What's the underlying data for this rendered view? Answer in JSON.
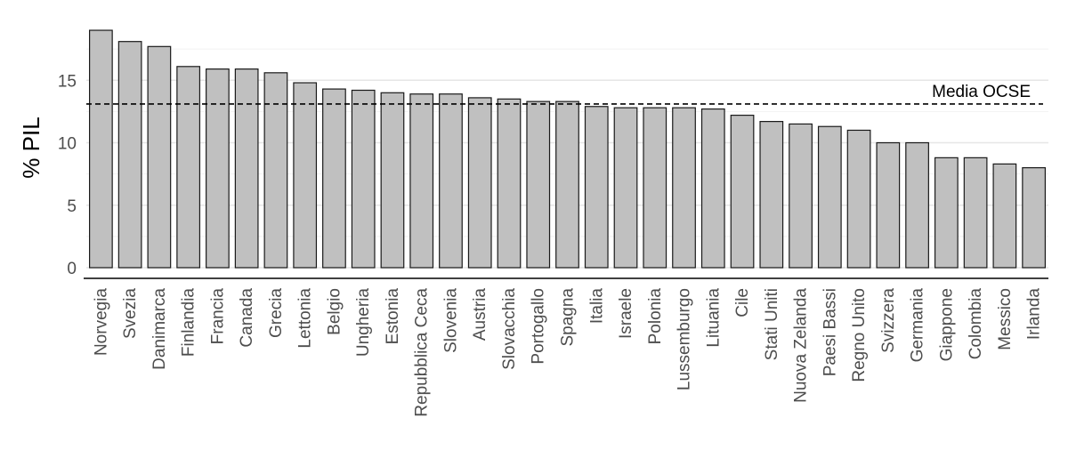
{
  "chart_data": {
    "type": "bar",
    "title": "",
    "xlabel": "",
    "ylabel": "% PIL",
    "ylim": [
      0,
      19
    ],
    "yticks": [
      0,
      5,
      10,
      15
    ],
    "grid": true,
    "bar_color": "#c0c0c0",
    "bar_edge_color": "#1a1a1a",
    "categories": [
      "Norvegia",
      "Svezia",
      "Danimarca",
      "Finlandia",
      "Francia",
      "Canada",
      "Grecia",
      "Lettonia",
      "Belgio",
      "Ungheria",
      "Estonia",
      "Repubblica Ceca",
      "Slovenia",
      "Austria",
      "Slovacchia",
      "Portogallo",
      "Spagna",
      "Italia",
      "Israele",
      "Polonia",
      "Lussemburgo",
      "Lituania",
      "Cile",
      "Stati Uniti",
      "Nuova Zelanda",
      "Paesi Bassi",
      "Regno Unito",
      "Svizzera",
      "Germania",
      "Giappone",
      "Colombia",
      "Messico",
      "Irlanda"
    ],
    "values": [
      19.0,
      18.1,
      17.7,
      16.1,
      15.9,
      15.9,
      15.6,
      14.8,
      14.3,
      14.2,
      14.0,
      13.9,
      13.9,
      13.6,
      13.5,
      13.3,
      13.3,
      12.9,
      12.8,
      12.8,
      12.8,
      12.7,
      12.2,
      11.7,
      11.5,
      11.3,
      11.0,
      10.0,
      10.0,
      8.8,
      8.8,
      8.3,
      8.0
    ],
    "reference_line": {
      "label": "Media OCSE",
      "value": 13.1,
      "style": "dashed"
    }
  }
}
